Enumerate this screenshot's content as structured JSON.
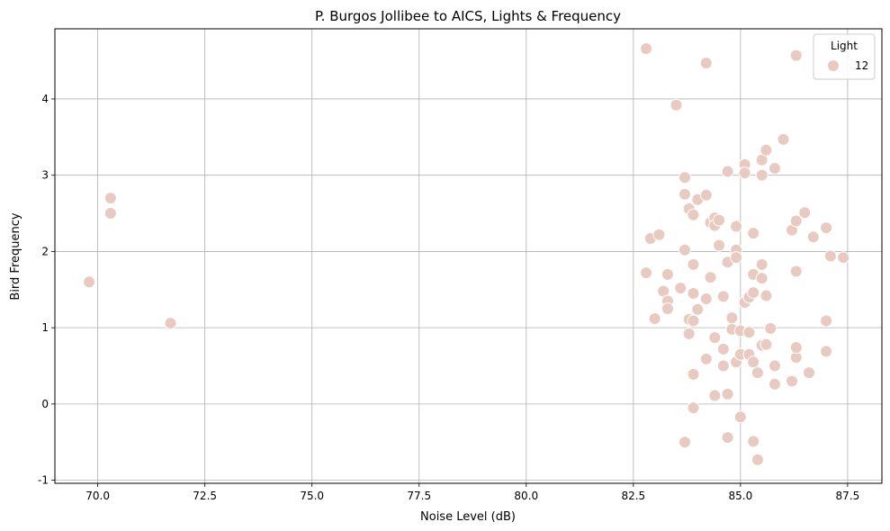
{
  "chart_data": {
    "type": "scatter",
    "title": "P. Burgos Jollibee to AICS, Lights & Frequency",
    "xlabel": "Noise Level (dB)",
    "ylabel": "Bird Frequency",
    "xlim": [
      69.0,
      88.3
    ],
    "ylim": [
      -1.04,
      4.92
    ],
    "xticks": [
      "70.0",
      "72.5",
      "75.0",
      "77.5",
      "80.0",
      "82.5",
      "85.0",
      "87.5"
    ],
    "xtick_values": [
      70.0,
      72.5,
      75.0,
      77.5,
      80.0,
      82.5,
      85.0,
      87.5
    ],
    "yticks": [
      "-1",
      "0",
      "1",
      "2",
      "3",
      "4"
    ],
    "ytick_values": [
      -1,
      0,
      1,
      2,
      3,
      4
    ],
    "grid": true,
    "legend": {
      "title": "Light",
      "placement": "top-right",
      "entries": [
        "12"
      ]
    },
    "series": [
      {
        "name": "12",
        "color": "#e8cac0",
        "points": [
          [
            69.8,
            1.6
          ],
          [
            70.3,
            2.7
          ],
          [
            70.3,
            2.5
          ],
          [
            71.7,
            1.06
          ],
          [
            82.8,
            4.66
          ],
          [
            82.8,
            1.72
          ],
          [
            82.9,
            2.17
          ],
          [
            83.0,
            1.12
          ],
          [
            83.1,
            2.22
          ],
          [
            83.2,
            1.48
          ],
          [
            83.3,
            1.7
          ],
          [
            83.3,
            1.35
          ],
          [
            83.3,
            1.25
          ],
          [
            83.5,
            3.92
          ],
          [
            83.6,
            1.52
          ],
          [
            83.7,
            2.97
          ],
          [
            83.7,
            2.75
          ],
          [
            83.7,
            2.02
          ],
          [
            83.7,
            -0.5
          ],
          [
            83.8,
            1.11
          ],
          [
            83.8,
            2.56
          ],
          [
            83.8,
            0.92
          ],
          [
            83.9,
            1.09
          ],
          [
            83.9,
            2.48
          ],
          [
            83.9,
            1.83
          ],
          [
            83.9,
            1.45
          ],
          [
            83.9,
            0.39
          ],
          [
            83.9,
            -0.05
          ],
          [
            84.0,
            2.68
          ],
          [
            84.0,
            1.24
          ],
          [
            84.2,
            4.47
          ],
          [
            84.2,
            2.74
          ],
          [
            84.2,
            1.38
          ],
          [
            84.2,
            0.59
          ],
          [
            84.3,
            2.38
          ],
          [
            84.3,
            1.66
          ],
          [
            84.4,
            2.44
          ],
          [
            84.4,
            2.34
          ],
          [
            84.4,
            0.87
          ],
          [
            84.4,
            0.11
          ],
          [
            84.5,
            2.41
          ],
          [
            84.5,
            2.08
          ],
          [
            84.6,
            0.72
          ],
          [
            84.6,
            0.5
          ],
          [
            84.6,
            1.41
          ],
          [
            84.7,
            1.86
          ],
          [
            84.7,
            0.13
          ],
          [
            84.7,
            3.05
          ],
          [
            84.7,
            -0.44
          ],
          [
            84.8,
            0.98
          ],
          [
            84.8,
            1.13
          ],
          [
            84.9,
            2.33
          ],
          [
            84.9,
            2.02
          ],
          [
            84.9,
            0.55
          ],
          [
            84.9,
            1.92
          ],
          [
            85.0,
            0.96
          ],
          [
            85.0,
            0.65
          ],
          [
            85.0,
            -0.17
          ],
          [
            85.1,
            1.33
          ],
          [
            85.1,
            3.14
          ],
          [
            85.1,
            3.03
          ],
          [
            85.2,
            1.4
          ],
          [
            85.2,
            0.94
          ],
          [
            85.2,
            0.65
          ],
          [
            85.3,
            1.46
          ],
          [
            85.3,
            1.7
          ],
          [
            85.3,
            0.55
          ],
          [
            85.3,
            -0.49
          ],
          [
            85.3,
            2.24
          ],
          [
            85.4,
            0.41
          ],
          [
            85.4,
            -0.73
          ],
          [
            85.5,
            0.77
          ],
          [
            85.5,
            1.65
          ],
          [
            85.5,
            1.83
          ],
          [
            85.5,
            3.2
          ],
          [
            85.5,
            3.0
          ],
          [
            85.6,
            1.42
          ],
          [
            85.6,
            0.78
          ],
          [
            85.6,
            3.33
          ],
          [
            85.7,
            0.99
          ],
          [
            85.8,
            0.5
          ],
          [
            85.8,
            0.26
          ],
          [
            85.8,
            3.09
          ],
          [
            86.0,
            3.47
          ],
          [
            86.2,
            2.28
          ],
          [
            86.2,
            0.3
          ],
          [
            86.3,
            0.61
          ],
          [
            86.3,
            4.57
          ],
          [
            86.3,
            2.4
          ],
          [
            86.3,
            0.74
          ],
          [
            86.3,
            1.74
          ],
          [
            86.5,
            2.51
          ],
          [
            86.6,
            0.41
          ],
          [
            86.7,
            2.19
          ],
          [
            87.0,
            0.69
          ],
          [
            87.0,
            1.09
          ],
          [
            87.0,
            2.31
          ],
          [
            87.1,
            1.94
          ],
          [
            87.4,
            1.92
          ]
        ]
      }
    ]
  }
}
